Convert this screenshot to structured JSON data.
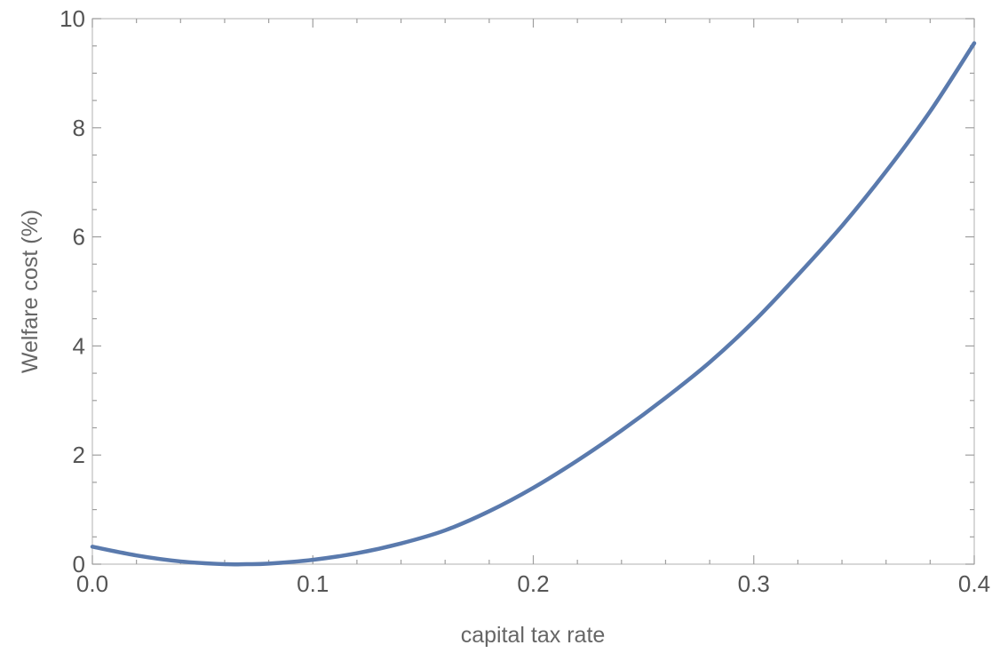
{
  "chart_data": {
    "type": "line",
    "title": "",
    "xlabel": "capital tax rate",
    "ylabel": "Welfare cost (%)",
    "xlim": [
      0.0,
      0.4
    ],
    "ylim": [
      0,
      10
    ],
    "x_ticks": [
      "0.0",
      "0.1",
      "0.2",
      "0.3",
      "0.4"
    ],
    "y_ticks": [
      "0",
      "2",
      "4",
      "6",
      "8",
      "10"
    ],
    "x_tick_values": [
      0.0,
      0.1,
      0.2,
      0.3,
      0.4
    ],
    "y_tick_values": [
      0,
      2,
      4,
      6,
      8,
      10
    ],
    "grid": false,
    "legend": "none",
    "series": [
      {
        "color": "#5a7aad",
        "x": [
          0.0,
          0.02,
          0.04,
          0.06,
          0.07,
          0.08,
          0.1,
          0.12,
          0.14,
          0.16,
          0.18,
          0.2,
          0.22,
          0.24,
          0.26,
          0.28,
          0.3,
          0.32,
          0.34,
          0.36,
          0.38,
          0.4
        ],
        "y": [
          0.32,
          0.16,
          0.05,
          0.0,
          0.0,
          0.01,
          0.08,
          0.2,
          0.38,
          0.62,
          0.97,
          1.4,
          1.9,
          2.45,
          3.05,
          3.7,
          4.45,
          5.3,
          6.2,
          7.2,
          8.3,
          9.55
        ]
      }
    ]
  }
}
